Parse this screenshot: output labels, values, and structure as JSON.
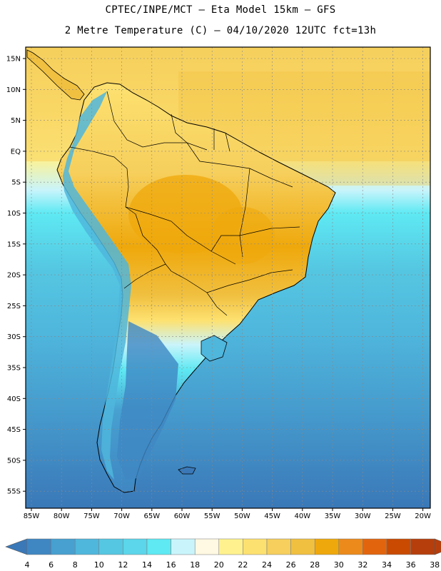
{
  "header": {
    "line1": "CPTEC/INPE/MCT –  Eta Model 15km – GFS",
    "line2": "2 Metre Temperature (C) – 04/10/2020 12UTC fct=13h"
  },
  "map": {
    "lat_labels": [
      "15N",
      "10N",
      "5N",
      "EQ",
      "5S",
      "10S",
      "15S",
      "20S",
      "25S",
      "30S",
      "35S",
      "40S",
      "45S",
      "50S",
      "55S"
    ],
    "lon_labels": [
      "85W",
      "80W",
      "75W",
      "70W",
      "65W",
      "60W",
      "55W",
      "50W",
      "45W",
      "40W",
      "35W",
      "30W",
      "25W",
      "20W"
    ]
  },
  "colorbar": {
    "labels": [
      "4",
      "6",
      "8",
      "10",
      "12",
      "14",
      "16",
      "18",
      "20",
      "22",
      "24",
      "26",
      "28",
      "30",
      "32",
      "34",
      "36",
      "38"
    ],
    "colors": [
      "#3a78b8",
      "#3f87c3",
      "#47a0d0",
      "#4fb6dc",
      "#55c7e2",
      "#5bd6ea",
      "#5ee9f3",
      "#c9f4fb",
      "#fff8e2",
      "#fff28e",
      "#fde170",
      "#f6cf5c",
      "#f0c040",
      "#efa80b",
      "#ec8a1c",
      "#e2650e",
      "#c94a00",
      "#b63e0c"
    ]
  }
}
